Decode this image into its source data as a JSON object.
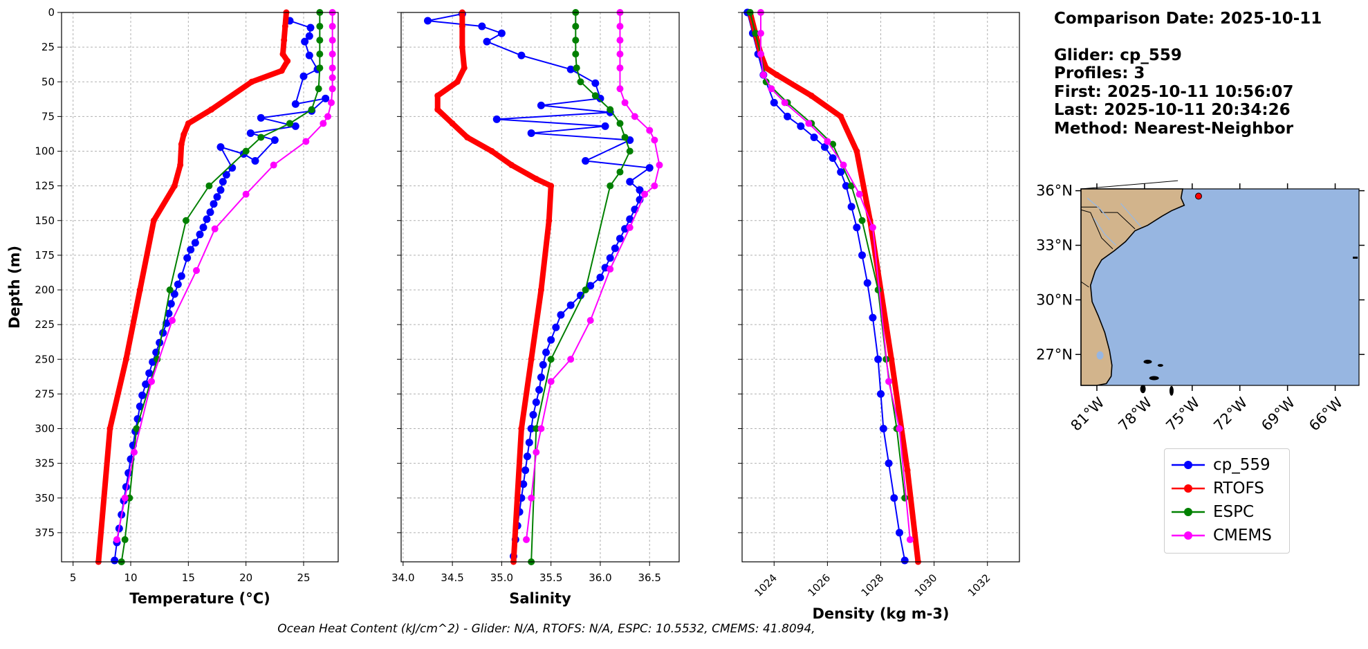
{
  "info": {
    "comparison_date": "Comparison Date: 2025-10-11",
    "glider": "Glider: cp_559",
    "profiles": "Profiles: 3",
    "first": "First: 2025-10-11 10:56:07",
    "last": "Last: 2025-10-11 20:34:26",
    "method": "Method: Nearest-Neighbor"
  },
  "footer": "Ocean Heat Content (kJ/cm^2) - Glider: N/A,  RTOFS: N/A,  ESPC: 10.5532,  CMEMS: 41.8094,",
  "colors": {
    "glider": "#0000ff",
    "glider_raw": "#00ffff",
    "rtofs": "#ff0000",
    "espc": "#008000",
    "cmems": "#ff00ff",
    "ocean": "#97b6e1",
    "land": "#d2b48c"
  },
  "legend": [
    {
      "label": "cp_559",
      "color": "#0000ff"
    },
    {
      "label": "RTOFS",
      "color": "#ff0000"
    },
    {
      "label": "ESPC",
      "color": "#008000"
    },
    {
      "label": "CMEMS",
      "color": "#ff00ff"
    }
  ],
  "map": {
    "lon_ticks": [
      "81°W",
      "78°W",
      "75°W",
      "72°W",
      "69°W",
      "66°W"
    ],
    "lat_ticks": [
      "36°N",
      "33°N",
      "30°N",
      "27°N"
    ],
    "lon_values": [
      -81,
      -78,
      -75,
      -72,
      -69,
      -66
    ],
    "lat_values": [
      36,
      33,
      30,
      27
    ],
    "xlim": [
      -82,
      -64.5
    ],
    "ylim": [
      25.3,
      36.1
    ],
    "glider_position": {
      "lon": -74.6,
      "lat": 35.7
    },
    "land_description": "US Southeast coast and Florida (land tan, ocean blue)"
  },
  "chart_data": [
    {
      "type": "line",
      "xlabel": "Temperature (°C)",
      "ylabel": "Depth (m)",
      "xlim": [
        4,
        28
      ],
      "ylim": [
        396,
        0
      ],
      "xticks": [
        5,
        10,
        15,
        20,
        25
      ],
      "yticks": [
        0,
        25,
        50,
        75,
        100,
        125,
        150,
        175,
        200,
        225,
        250,
        275,
        300,
        325,
        350,
        375
      ],
      "grid": true,
      "series": [
        {
          "name": "cp_559",
          "color": "#0000ff",
          "x": [
            23.8,
            25.6,
            25.5,
            25.1,
            25.5,
            26.2,
            25.0,
            24.3,
            26.9,
            25.7,
            21.3,
            24.3,
            20.4,
            22.5,
            20.8,
            19.8,
            17.8,
            18.8,
            18.3,
            18.0,
            17.8,
            17.5,
            17.2,
            16.9,
            16.6,
            16.3,
            16.0,
            15.6,
            15.2,
            14.9,
            14.4,
            14.1,
            13.8,
            13.5,
            13.3,
            13.1,
            12.8,
            12.5,
            12.2,
            11.9,
            11.6,
            11.3,
            11.0,
            10.8,
            10.6,
            10.4,
            10.2,
            10.0,
            9.8,
            9.6,
            9.4,
            9.2,
            9.0,
            8.8,
            8.6
          ],
          "y": [
            6,
            11,
            17,
            21,
            31,
            41,
            46,
            66,
            62,
            71,
            76,
            82,
            87,
            92,
            107,
            102,
            97,
            112,
            117,
            122,
            128,
            133,
            138,
            144,
            149,
            155,
            160,
            166,
            171,
            177,
            190,
            196,
            203,
            210,
            217,
            224,
            231,
            238,
            245,
            252,
            260,
            268,
            276,
            284,
            293,
            302,
            312,
            322,
            332,
            342,
            352,
            362,
            372,
            382,
            395
          ]
        },
        {
          "name": "RTOFS",
          "color": "#ff0000",
          "x": [
            23.5,
            23.4,
            23.3,
            23.2,
            23.6,
            23.1,
            20.5,
            17.0,
            15.0,
            14.6,
            14.4,
            14.3,
            13.8,
            12.0,
            10.8,
            9.6,
            8.2,
            7.2
          ],
          "y": [
            0,
            10,
            20,
            30,
            35,
            42,
            50,
            70,
            80,
            88,
            95,
            110,
            125,
            150,
            200,
            250,
            300,
            396
          ]
        },
        {
          "name": "ESPC",
          "color": "#008000",
          "x": [
            26.4,
            26.4,
            26.4,
            26.4,
            26.4,
            26.3,
            25.7,
            23.8,
            21.3,
            20.0,
            16.8,
            14.8,
            13.4,
            12.3,
            10.5,
            9.9,
            9.5,
            9.2
          ],
          "y": [
            0,
            10,
            20,
            30,
            40,
            55,
            70,
            80,
            90,
            100,
            125,
            150,
            200,
            250,
            300,
            350,
            380,
            396
          ]
        },
        {
          "name": "CMEMS",
          "color": "#ff00ff",
          "x": [
            27.5,
            27.5,
            27.5,
            27.5,
            27.5,
            27.5,
            27.5,
            27.4,
            27.1,
            26.7,
            25.2,
            22.4,
            20.0,
            17.3,
            15.7,
            13.6,
            11.8,
            10.3,
            9.5,
            8.8
          ],
          "y": [
            0,
            10,
            20,
            30,
            40,
            47,
            55,
            65,
            75,
            80,
            93,
            110,
            131,
            156,
            186,
            222,
            266,
            317,
            350,
            380
          ]
        }
      ]
    },
    {
      "type": "line",
      "xlabel": "Salinity",
      "ylabel": "",
      "xlim": [
        33.98,
        36.8
      ],
      "ylim": [
        396,
        0
      ],
      "xticks": [
        34.0,
        34.5,
        35.0,
        35.5,
        36.0,
        36.5
      ],
      "yticks": [
        0,
        25,
        50,
        75,
        100,
        125,
        150,
        175,
        200,
        225,
        250,
        275,
        300,
        325,
        350,
        375
      ],
      "grid": true,
      "series": [
        {
          "name": "cp_559",
          "color": "#0000ff",
          "x": [
            34.6,
            34.25,
            34.8,
            35.0,
            34.85,
            35.2,
            35.7,
            35.95,
            36.0,
            35.4,
            36.1,
            34.95,
            36.05,
            35.3,
            36.3,
            35.85,
            36.5,
            36.3,
            36.4,
            36.4,
            36.35,
            36.3,
            36.25,
            36.2,
            36.15,
            36.1,
            36.05,
            36.0,
            35.9,
            35.8,
            35.7,
            35.6,
            35.55,
            35.5,
            35.45,
            35.42,
            35.4,
            35.38,
            35.35,
            35.32,
            35.3,
            35.28,
            35.26,
            35.24,
            35.22,
            35.2,
            35.18,
            35.16,
            35.14,
            35.12
          ],
          "y": [
            1,
            6,
            10,
            15,
            21,
            31,
            41,
            51,
            62,
            67,
            72,
            77,
            82,
            87,
            92,
            107,
            112,
            122,
            128,
            135,
            142,
            149,
            156,
            163,
            170,
            177,
            184,
            191,
            197,
            204,
            211,
            218,
            227,
            236,
            245,
            254,
            263,
            272,
            281,
            290,
            300,
            310,
            320,
            330,
            340,
            350,
            360,
            370,
            380,
            392
          ]
        },
        {
          "name": "RTOFS",
          "color": "#ff0000",
          "x": [
            34.6,
            34.6,
            34.6,
            34.62,
            34.55,
            34.35,
            34.35,
            34.5,
            34.65,
            34.9,
            35.1,
            35.35,
            35.5,
            35.48,
            35.4,
            35.3,
            35.2,
            35.12
          ],
          "y": [
            0,
            10,
            25,
            40,
            50,
            60,
            70,
            80,
            90,
            100,
            110,
            120,
            125,
            150,
            200,
            250,
            300,
            396
          ]
        },
        {
          "name": "ESPC",
          "color": "#008000",
          "x": [
            35.75,
            35.75,
            35.75,
            35.75,
            35.76,
            35.8,
            35.95,
            36.1,
            36.2,
            36.25,
            36.3,
            36.2,
            36.1,
            35.85,
            35.5,
            35.35,
            35.3
          ],
          "y": [
            0,
            10,
            20,
            30,
            40,
            50,
            60,
            70,
            80,
            90,
            100,
            115,
            125,
            200,
            250,
            300,
            396
          ]
        },
        {
          "name": "CMEMS",
          "color": "#ff00ff",
          "x": [
            36.2,
            36.2,
            36.2,
            36.2,
            36.2,
            36.2,
            36.25,
            36.35,
            36.5,
            36.55,
            36.6,
            36.55,
            36.45,
            36.3,
            36.1,
            35.9,
            35.7,
            35.5,
            35.4,
            35.35,
            35.3,
            35.25
          ],
          "y": [
            0,
            10,
            20,
            30,
            40,
            55,
            65,
            75,
            85,
            92,
            110,
            125,
            131,
            155,
            185,
            222,
            250,
            266,
            300,
            317,
            350,
            380
          ]
        }
      ]
    },
    {
      "type": "line",
      "xlabel": "Density (kg m-3)",
      "ylabel": "",
      "xlim": [
        1022.8,
        1033.2
      ],
      "ylim": [
        396,
        0
      ],
      "xticks": [
        1024,
        1026,
        1028,
        1030,
        1032
      ],
      "yticks": [
        0,
        25,
        50,
        75,
        100,
        125,
        150,
        175,
        200,
        225,
        250,
        275,
        300,
        325,
        350,
        375
      ],
      "grid": true,
      "series": [
        {
          "name": "cp_559",
          "color": "#0000ff",
          "x": [
            1023.0,
            1023.2,
            1023.4,
            1023.6,
            1024.0,
            1024.5,
            1025.0,
            1025.5,
            1025.9,
            1026.2,
            1026.5,
            1026.7,
            1026.9,
            1027.1,
            1027.3,
            1027.5,
            1027.7,
            1027.9,
            1028.0,
            1028.1,
            1028.3,
            1028.5,
            1028.7,
            1028.9
          ],
          "y": [
            0,
            15,
            30,
            45,
            65,
            75,
            82,
            90,
            97,
            105,
            115,
            125,
            140,
            155,
            175,
            195,
            220,
            250,
            275,
            300,
            325,
            350,
            375,
            395
          ]
        },
        {
          "name": "RTOFS",
          "color": "#ff0000",
          "x": [
            1023.1,
            1023.3,
            1023.5,
            1023.7,
            1024.1,
            1025.4,
            1026.5,
            1027.1,
            1027.6,
            1028.4,
            1029.0,
            1029.4
          ],
          "y": [
            0,
            15,
            30,
            40,
            45,
            60,
            75,
            100,
            150,
            250,
            330,
            396
          ]
        },
        {
          "name": "ESPC",
          "color": "#008000",
          "x": [
            1023.1,
            1023.3,
            1023.5,
            1023.7,
            1024.5,
            1025.4,
            1026.2,
            1026.9,
            1027.3,
            1027.9,
            1028.2,
            1028.6,
            1028.9
          ],
          "y": [
            0,
            15,
            30,
            50,
            65,
            80,
            95,
            125,
            150,
            200,
            250,
            300,
            350
          ]
        },
        {
          "name": "CMEMS",
          "color": "#ff00ff",
          "x": [
            1023.5,
            1023.5,
            1023.5,
            1023.6,
            1023.9,
            1024.4,
            1025.3,
            1026.0,
            1026.6,
            1027.2,
            1027.7,
            1028.3,
            1028.7,
            1029.1
          ],
          "y": [
            0,
            15,
            30,
            45,
            55,
            65,
            80,
            93,
            110,
            131,
            155,
            266,
            300,
            380
          ]
        }
      ]
    }
  ]
}
